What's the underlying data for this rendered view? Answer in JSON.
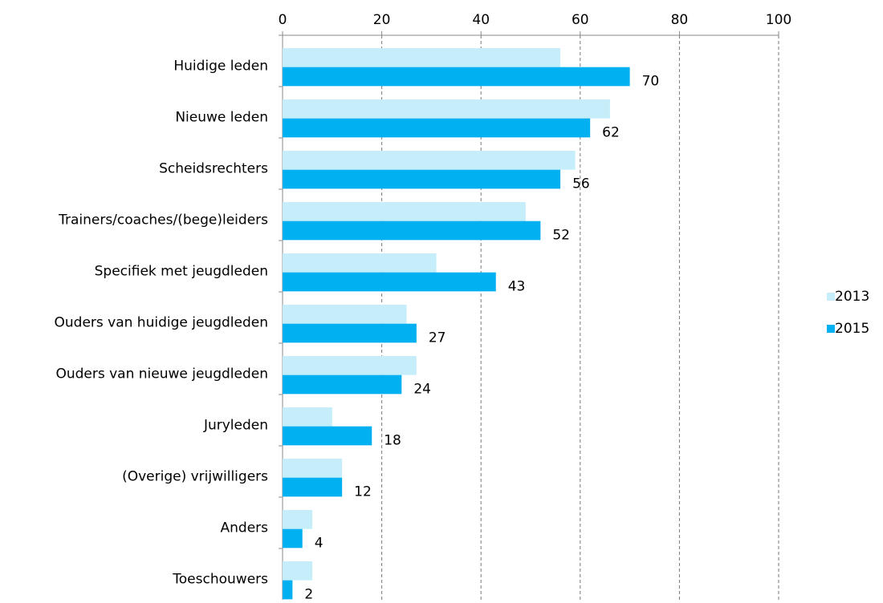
{
  "chart_data": {
    "type": "bar",
    "orientation": "horizontal",
    "categories": [
      "Huidige leden",
      "Nieuwe leden",
      "Scheidsrechters",
      "Trainers/coaches/(bege)leiders",
      "Specifiek met jeugdleden",
      "Ouders van huidige jeugdleden",
      "Ouders van nieuwe jeugdleden",
      "Juryleden",
      "(Overige) vrijwilligers",
      "Anders",
      "Toeschouwers"
    ],
    "series": [
      {
        "name": "2013",
        "color": "#c6eefa",
        "values": [
          56,
          66,
          59,
          49,
          31,
          25,
          27,
          10,
          12,
          6,
          6
        ]
      },
      {
        "name": "2015",
        "color": "#00b0f0",
        "values": [
          70,
          62,
          56,
          52,
          43,
          27,
          24,
          18,
          12,
          4,
          2
        ],
        "show_labels": true
      }
    ],
    "xlim": [
      0,
      100
    ],
    "xticks": [
      0,
      20,
      40,
      60,
      80,
      100
    ],
    "grid": true,
    "legend": "right"
  }
}
